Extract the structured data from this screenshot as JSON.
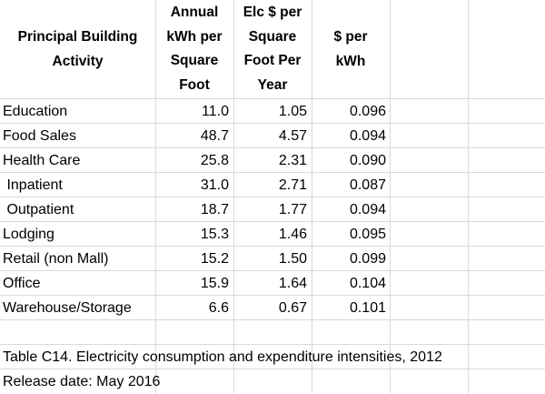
{
  "header": {
    "col0": [
      "Principal Building",
      "Activity"
    ],
    "col1": [
      "Annual",
      "kWh per",
      "Square",
      "Foot"
    ],
    "col2": [
      "Elc $ per",
      "Square",
      "Foot Per",
      "Year"
    ],
    "col3": [
      "$ per",
      "kWh"
    ]
  },
  "rows": [
    {
      "activity": "Education",
      "kwh": "11.0",
      "dollars_sqft": "1.05",
      "dollars_kwh": "0.096"
    },
    {
      "activity": "Food Sales",
      "kwh": "48.7",
      "dollars_sqft": "4.57",
      "dollars_kwh": "0.094"
    },
    {
      "activity": "Health Care",
      "kwh": "25.8",
      "dollars_sqft": "2.31",
      "dollars_kwh": "0.090"
    },
    {
      "activity": " Inpatient",
      "kwh": "31.0",
      "dollars_sqft": "2.71",
      "dollars_kwh": "0.087"
    },
    {
      "activity": " Outpatient",
      "kwh": "18.7",
      "dollars_sqft": "1.77",
      "dollars_kwh": "0.094"
    },
    {
      "activity": "Lodging",
      "kwh": "15.3",
      "dollars_sqft": "1.46",
      "dollars_kwh": "0.095"
    },
    {
      "activity": "Retail (non Mall)",
      "kwh": "15.2",
      "dollars_sqft": "1.50",
      "dollars_kwh": "0.099"
    },
    {
      "activity": "Office",
      "kwh": "15.9",
      "dollars_sqft": "1.64",
      "dollars_kwh": "0.104"
    },
    {
      "activity": "Warehouse/Storage",
      "kwh": "6.6",
      "dollars_sqft": "0.67",
      "dollars_kwh": "0.101"
    }
  ],
  "footer": {
    "caption": "Table C14. Electricity consumption and expenditure intensities, 2012",
    "release": "Release date:  May 2016"
  }
}
